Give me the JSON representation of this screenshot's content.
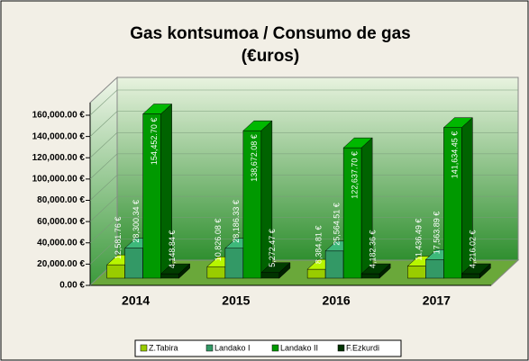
{
  "chart_data": {
    "type": "bar3d",
    "title": "Gas kontsumoa / Consumo de gas",
    "subtitle": "(€uros)",
    "categories": [
      "2014",
      "2015",
      "2016",
      "2017"
    ],
    "series": [
      {
        "name": "Z.Tabira",
        "color": "#99cc00",
        "values": [
          12581.76,
          10826.08,
          8384.81,
          11436.49
        ],
        "value_labels": [
          "12,581.76 €",
          "10,826.08 €",
          "8,384.81 €",
          "11,436.49 €"
        ]
      },
      {
        "name": "Landako I",
        "color": "#339966",
        "values": [
          28300.34,
          28186.33,
          25564.51,
          17563.89
        ],
        "value_labels": [
          "28,300.34 €",
          "28,186.33 €",
          "25,564.51 €",
          "17,563.89 €"
        ]
      },
      {
        "name": "Landako II",
        "color": "#009900",
        "values": [
          154452.7,
          138672.08,
          122637.7,
          141634.45
        ],
        "value_labels": [
          "154,452.70 €",
          "138,672.08 €",
          "122,637.70 €",
          "141,634.45 €"
        ]
      },
      {
        "name": "F.Ezkurdi",
        "color": "#003300",
        "values": [
          4148.84,
          5272.47,
          4182.36,
          4216.02
        ],
        "value_labels": [
          "4,148.84 €",
          "5,272.47 €",
          "4,182.36 €",
          "4,216.02 €"
        ]
      }
    ],
    "ylim": [
      0,
      160000
    ],
    "yticks": [
      {
        "value": 0,
        "label": "0.00 €"
      },
      {
        "value": 20000,
        "label": "20,000.00 €"
      },
      {
        "value": 40000,
        "label": "40,000.00 €"
      },
      {
        "value": 60000,
        "label": "60,000.00 €"
      },
      {
        "value": 80000,
        "label": "80,000.00 €"
      },
      {
        "value": 100000,
        "label": "100,000.00 €"
      },
      {
        "value": 120000,
        "label": "120,000.00 €"
      },
      {
        "value": 140000,
        "label": "140,000.00 €"
      },
      {
        "value": 160000,
        "label": "160,000.00 €"
      }
    ],
    "grid": true,
    "legend": "bottom"
  }
}
